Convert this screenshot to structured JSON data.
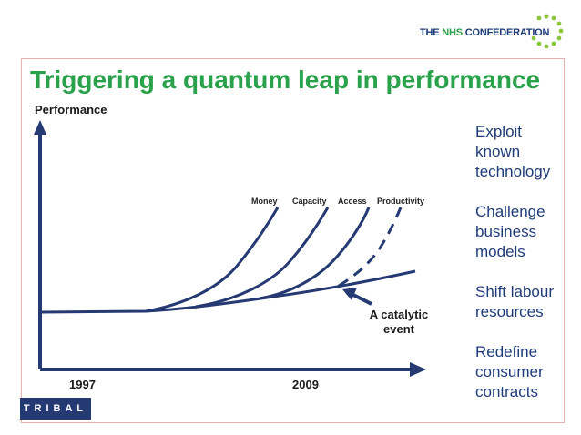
{
  "header": {
    "logo_prefix": "THE ",
    "logo_brand": "NHS",
    "logo_suffix": " CONFEDERATION",
    "brand_color": "#2ba04a",
    "navy_color": "#1d3c78"
  },
  "title": "Triggering a quantum leap in performance",
  "diagram": {
    "y_axis_label": "Performance",
    "x_ticks": [
      "1997",
      "2009"
    ],
    "curve_labels": [
      "Money",
      "Capacity",
      "Access",
      "Productivity"
    ],
    "annotation_line1": "A catalytic",
    "annotation_line2": "event"
  },
  "bullets": [
    {
      "line1": "Exploit",
      "line2": "known",
      "line3": "technology"
    },
    {
      "line1": "Challenge",
      "line2": "business",
      "line3": "models"
    },
    {
      "line1": "Shift labour",
      "line2": "resources",
      "line3": ""
    },
    {
      "line1": "Redefine",
      "line2": "consumer",
      "line3": "contracts"
    }
  ],
  "footer": {
    "tribal_logo": "TRIBAL"
  }
}
